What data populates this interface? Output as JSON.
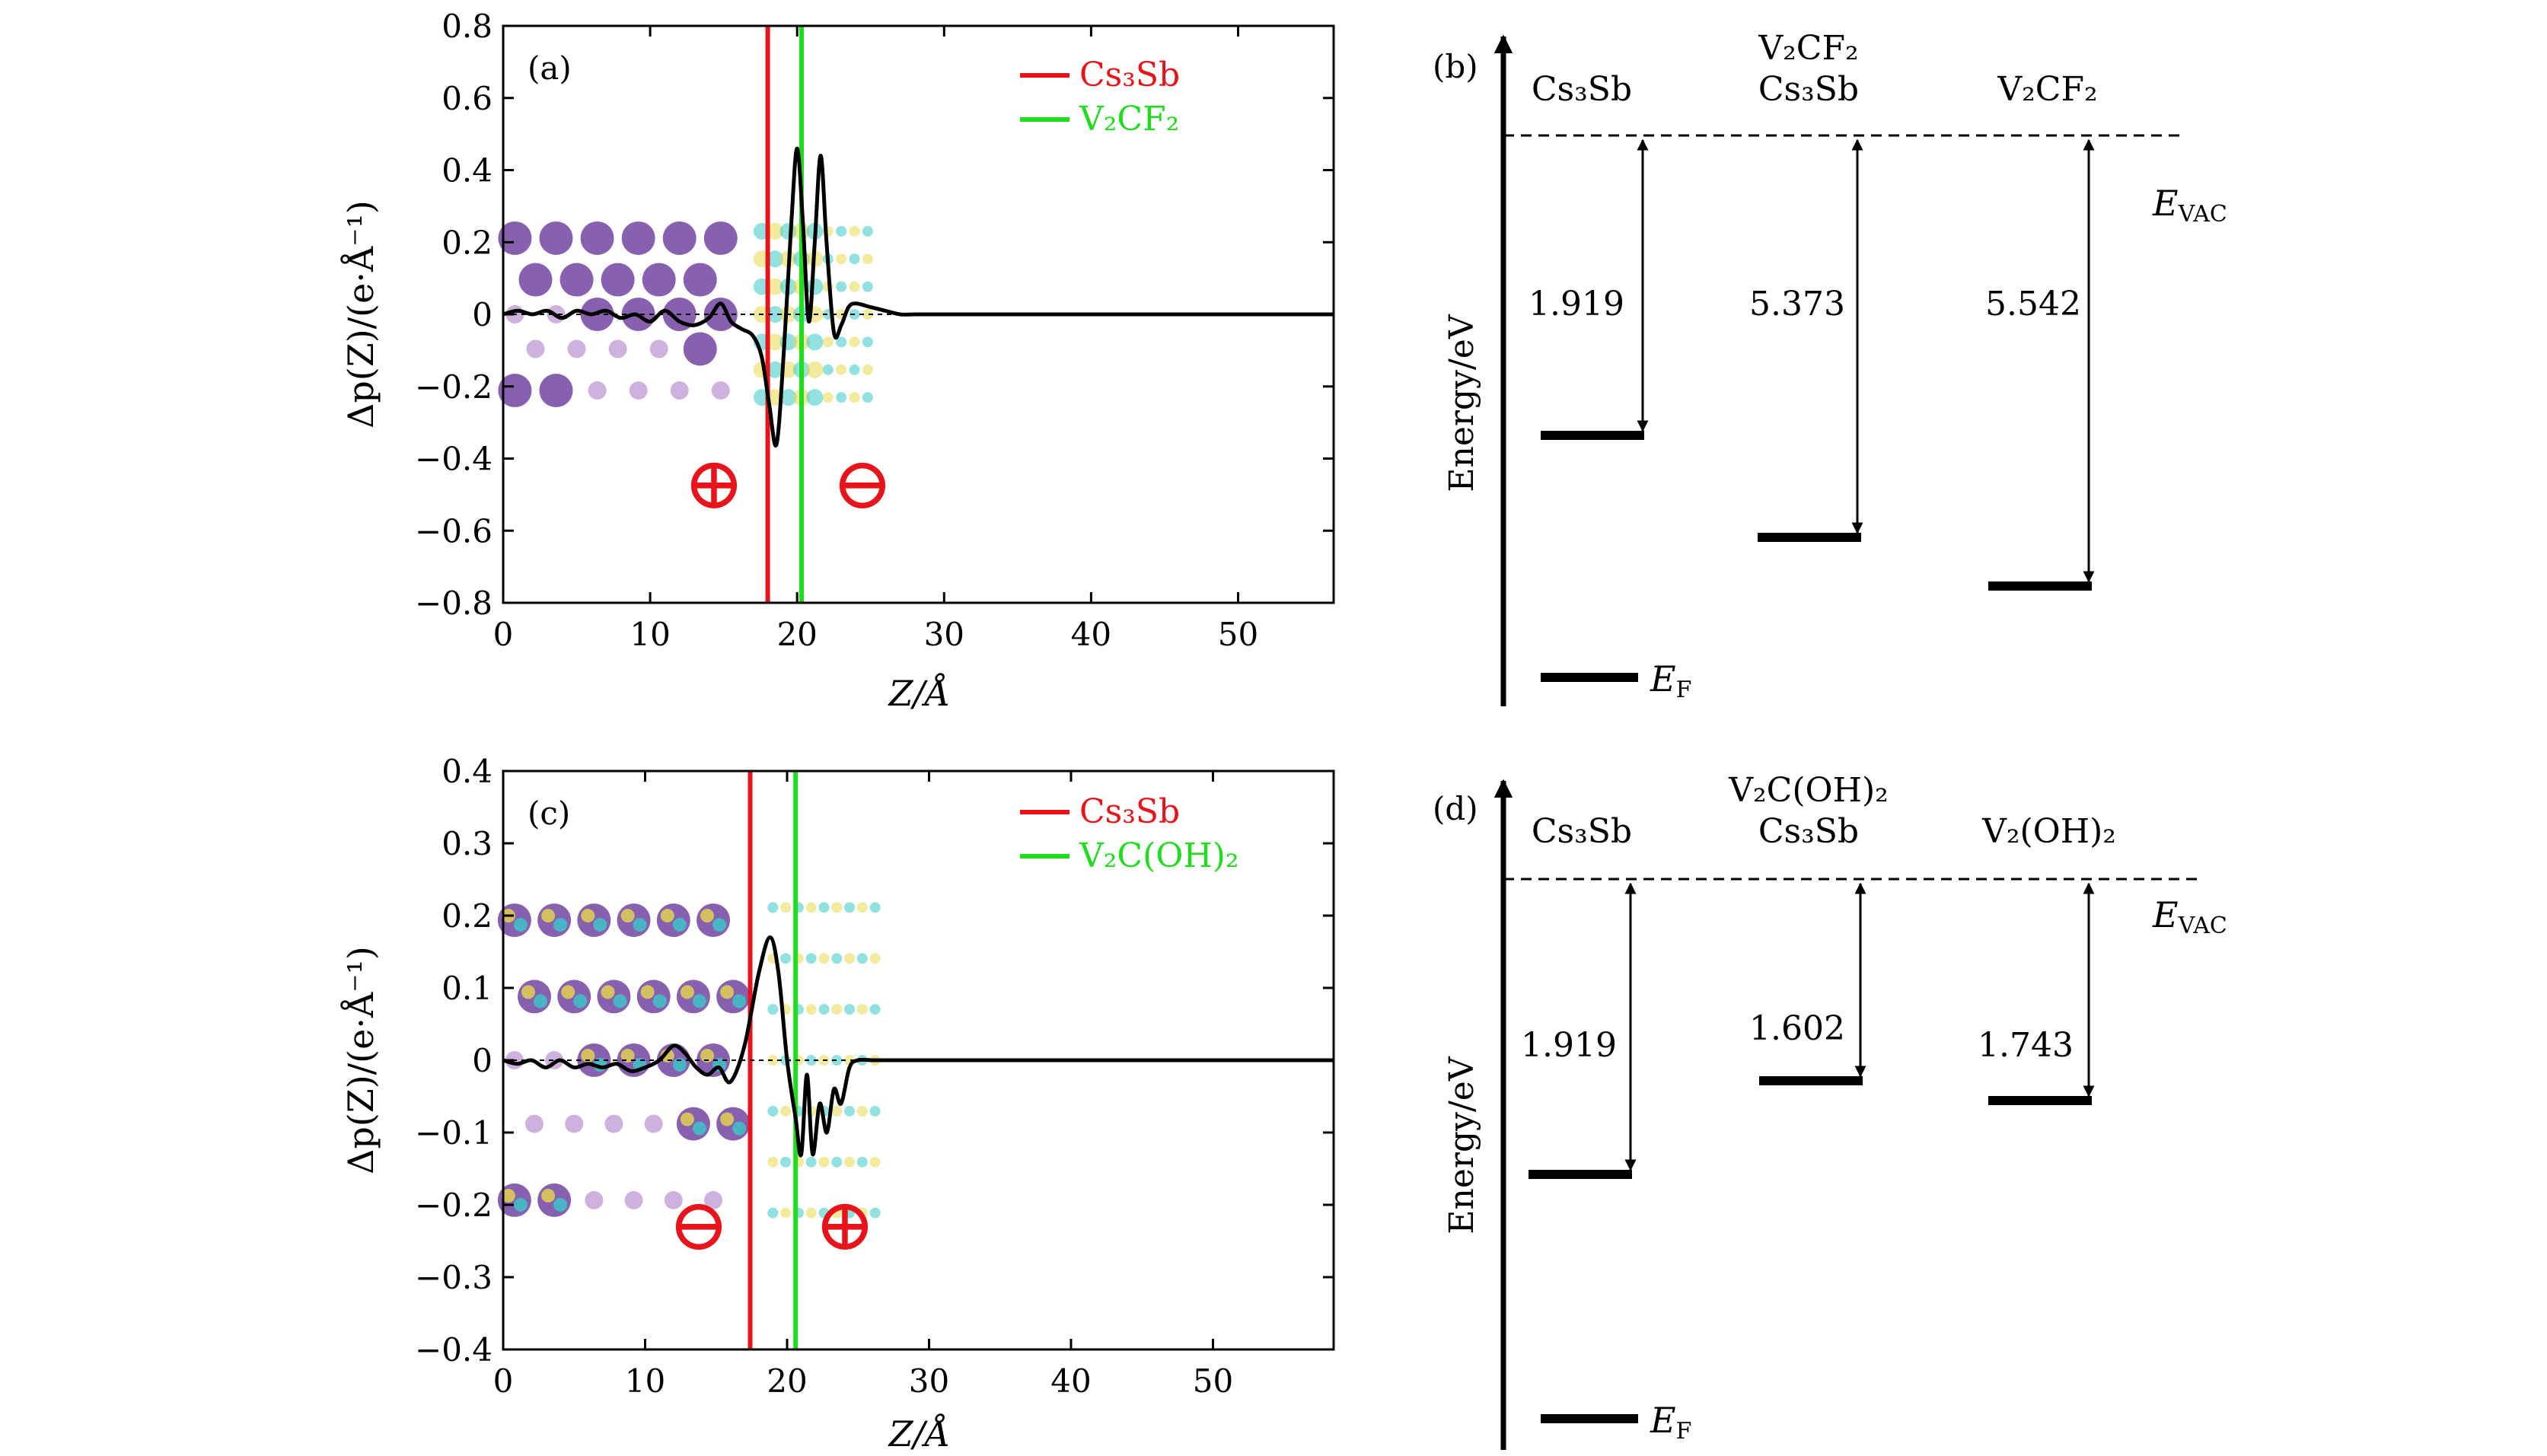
{
  "panels": {
    "a": {
      "label": "(a)",
      "xlabel": "Z/Å",
      "ylabel": "Δp(Z)/(e·Å⁻¹)",
      "legend": [
        {
          "name": "Cs₃Sb",
          "color": "#e8141c"
        },
        {
          "name": "V₂CF₂",
          "color": "#1fdc1f"
        }
      ],
      "signs": [
        "⊕",
        "⊖"
      ]
    },
    "b": {
      "label": "(b)",
      "ylabel": "Energy/eV",
      "columns": [
        "Cs₃Sb",
        "V₂CF₂",
        "Cs₃Sb",
        "V₂CF₂"
      ],
      "values": [
        "1.919",
        "5.373",
        "5.542"
      ],
      "evac": "EVAC",
      "ef": "EF"
    },
    "c": {
      "label": "(c)",
      "xlabel": "Z/Å",
      "ylabel": "Δp(Z)/(e·Å⁻¹)",
      "legend": [
        {
          "name": "Cs₃Sb",
          "color": "#e8141c"
        },
        {
          "name": "V₂C(OH)₂",
          "color": "#1fdc1f"
        }
      ],
      "signs": [
        "⊖",
        "⊕"
      ]
    },
    "d": {
      "label": "(d)",
      "ylabel": "Energy/eV",
      "columns": [
        "Cs₃Sb",
        "V₂C(OH)₂",
        "Cs₃Sb",
        "V₂(OH)₂"
      ],
      "values": [
        "1.919",
        "1.602",
        "1.743"
      ],
      "evac": "EVAC",
      "ef": "EF"
    }
  },
  "chart_data": [
    {
      "type": "line",
      "panel": "a",
      "xlim": [
        0,
        56.5
      ],
      "ylim": [
        -0.8,
        0.8
      ],
      "xticks": [
        "0",
        "10",
        "20",
        "30",
        "40",
        "50"
      ],
      "yticks": [
        "−0.8",
        "−0.6",
        "−0.4",
        "−0.2",
        "0",
        "0.2",
        "0.4",
        "0.6",
        "0.8"
      ],
      "vlines": [
        {
          "name": "Cs₃Sb",
          "x": 18.0,
          "color": "#e8141c"
        },
        {
          "name": "V₂CF₂",
          "x": 20.3,
          "color": "#1fdc1f"
        }
      ],
      "series": [
        {
          "x": [
            0,
            1,
            2,
            3,
            4,
            5,
            6,
            7,
            8,
            9,
            10,
            11,
            12,
            13,
            14,
            14.8,
            15.5,
            16.2,
            17,
            17.6,
            18.1,
            18.6,
            19.1,
            19.6,
            20.0,
            20.4,
            20.8,
            21.2,
            21.6,
            22.0,
            22.5,
            23.0,
            23.5,
            24,
            25,
            26,
            27,
            28,
            30,
            35,
            40,
            45,
            50,
            56.5
          ],
          "y": [
            0.0,
            0.01,
            0.0,
            0.01,
            -0.01,
            0.01,
            0.0,
            0.01,
            -0.01,
            0.0,
            -0.02,
            0.01,
            -0.02,
            -0.03,
            -0.01,
            0.03,
            -0.02,
            -0.04,
            -0.06,
            -0.12,
            -0.25,
            -0.36,
            -0.1,
            0.25,
            0.46,
            0.25,
            -0.02,
            0.2,
            0.44,
            0.2,
            -0.05,
            -0.03,
            0.02,
            0.03,
            0.02,
            0.01,
            0.0,
            0.0,
            0.0,
            0.0,
            0.0,
            0.0,
            0.0,
            0.0
          ]
        }
      ]
    },
    {
      "type": "bar",
      "panel": "b",
      "categories": [
        "Cs₃Sb",
        "V₂CF₂/Cs₃Sb",
        "V₂CF₂"
      ],
      "values": [
        1.919,
        5.373,
        5.542
      ]
    },
    {
      "type": "line",
      "panel": "c",
      "xlim": [
        0,
        58.5
      ],
      "ylim": [
        -0.4,
        0.4
      ],
      "xticks": [
        "0",
        "10",
        "20",
        "30",
        "40",
        "50"
      ],
      "yticks": [
        "−0.4",
        "−0.3",
        "−0.2",
        "−0.1",
        "0",
        "0.1",
        "0.2",
        "0.3",
        "0.4"
      ],
      "vlines": [
        {
          "name": "Cs₃Sb",
          "x": 17.4,
          "color": "#e8141c"
        },
        {
          "name": "V₂C(OH)₂",
          "x": 20.6,
          "color": "#1fdc1f"
        }
      ],
      "series": [
        {
          "x": [
            0,
            1,
            2,
            3,
            4,
            5,
            6,
            7,
            8,
            9,
            10,
            11,
            12,
            12.8,
            13.6,
            14.4,
            15.2,
            16,
            17,
            18,
            18.8,
            19.4,
            20,
            20.6,
            21,
            21.4,
            21.8,
            22.3,
            22.8,
            23.3,
            23.8,
            24.4,
            25,
            26,
            27,
            28,
            30,
            35,
            40,
            45,
            50,
            58.5
          ],
          "y": [
            0.0,
            -0.005,
            0.0,
            -0.01,
            0.0,
            -0.01,
            -0.005,
            -0.01,
            -0.005,
            -0.015,
            -0.01,
            0.0,
            0.02,
            0.01,
            -0.01,
            -0.02,
            -0.01,
            -0.03,
            0.02,
            0.12,
            0.17,
            0.12,
            0.0,
            -0.08,
            -0.13,
            -0.02,
            -0.13,
            -0.06,
            -0.1,
            -0.04,
            -0.06,
            -0.01,
            0.0,
            0.0,
            0.0,
            0.0,
            0.0,
            0.0,
            0.0,
            0.0,
            0.0,
            0.0
          ]
        }
      ]
    },
    {
      "type": "bar",
      "panel": "d",
      "categories": [
        "Cs₃Sb",
        "V₂C(OH)₂/Cs₃Sb",
        "V₂(OH)₂"
      ],
      "values": [
        1.919,
        1.602,
        1.743
      ]
    }
  ]
}
